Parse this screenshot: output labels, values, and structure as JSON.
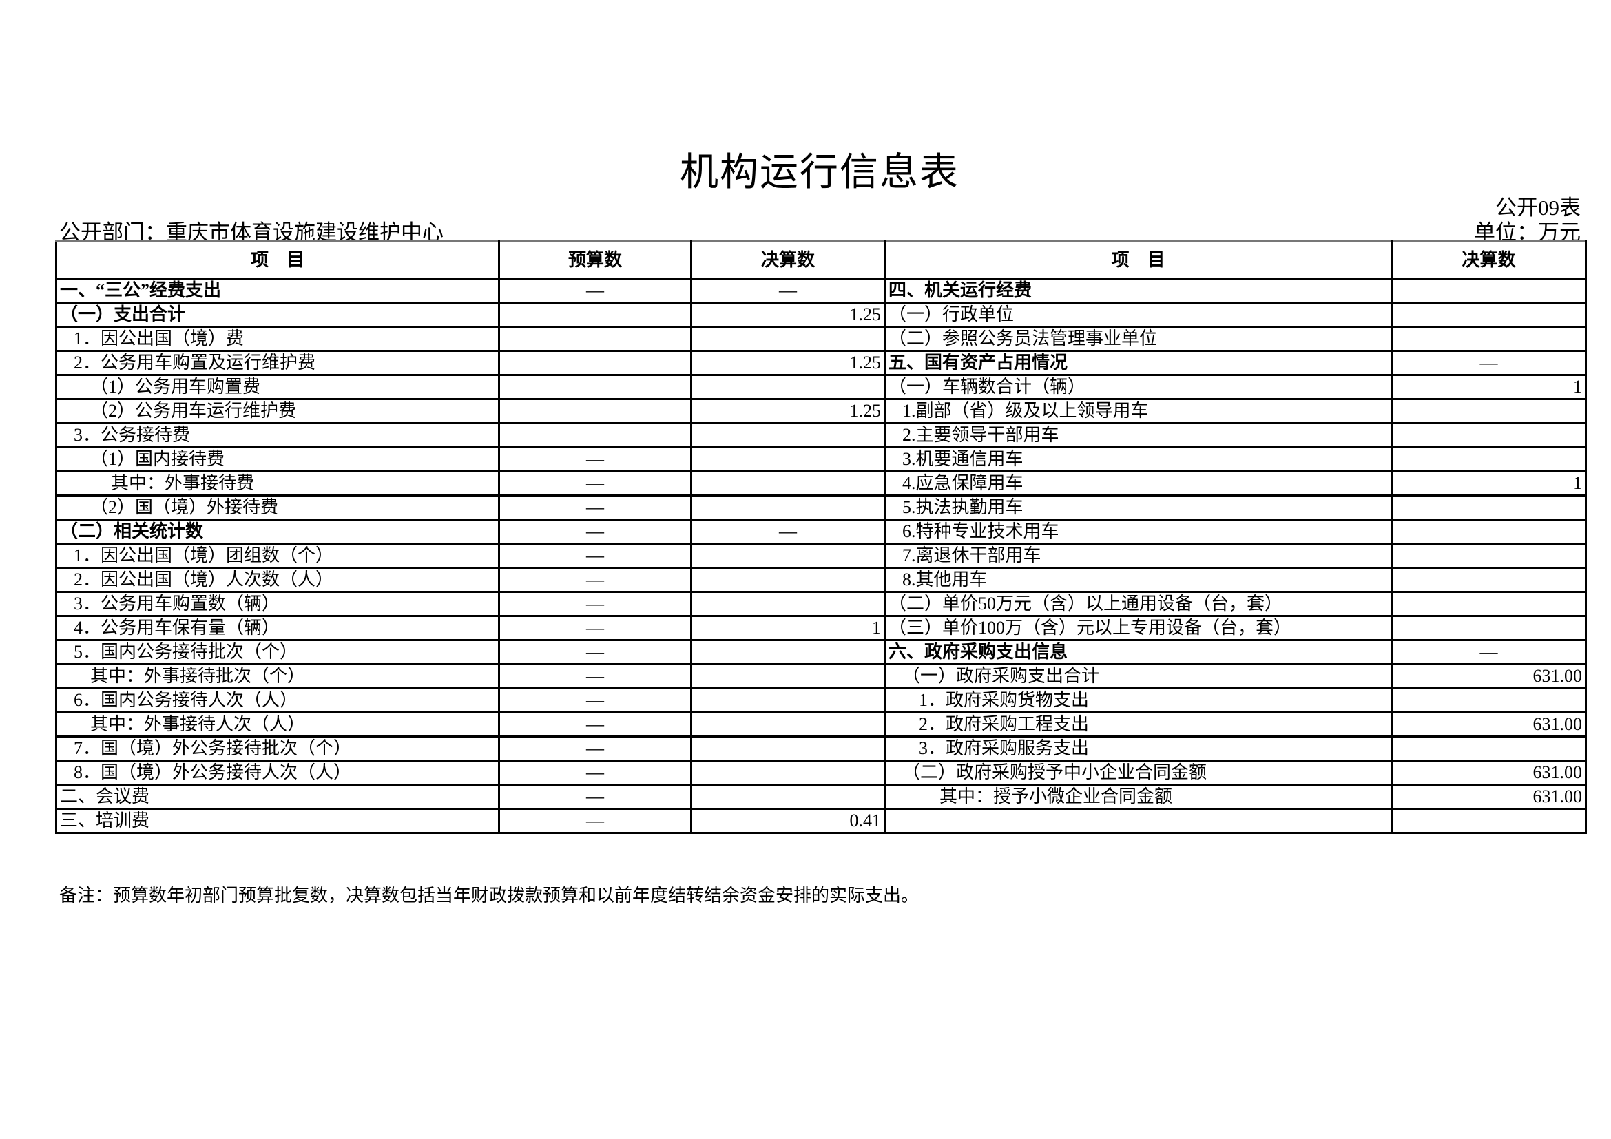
{
  "title": "机构运行信息表",
  "department": "公开部门：重庆市体育设施建设维护中心",
  "form_number": "公开09表",
  "unit": "单位：万元",
  "headers": {
    "item_left": "项　目",
    "budget": "预算数",
    "final_left": "决算数",
    "item_right": "项　目",
    "final_right": "决算数"
  },
  "left_rows": [
    {
      "label": "一、“三公”经费支出",
      "budget": "—",
      "final": "—",
      "bold": true,
      "indent": 0
    },
    {
      "label": "（一）支出合计",
      "budget": "",
      "final": "1.25",
      "bold": true,
      "indent": 0
    },
    {
      "label": "1．因公出国（境）费",
      "budget": "",
      "final": "",
      "indent": 1
    },
    {
      "label": "2．公务用车购置及运行维护费",
      "budget": "",
      "final": "1.25",
      "indent": 1
    },
    {
      "label": "（1）公务用车购置费",
      "budget": "",
      "final": "",
      "indent": 2
    },
    {
      "label": "（2）公务用车运行维护费",
      "budget": "",
      "final": "1.25",
      "indent": 2
    },
    {
      "label": "3．公务接待费",
      "budget": "",
      "final": "",
      "indent": 1
    },
    {
      "label": "（1）国内接待费",
      "budget": "—",
      "final": "",
      "indent": 2
    },
    {
      "label": "其中：外事接待费",
      "budget": "—",
      "final": "",
      "indent": 3
    },
    {
      "label": "（2）国（境）外接待费",
      "budget": "—",
      "final": "",
      "indent": 2
    },
    {
      "label": "（二）相关统计数",
      "budget": "—",
      "final": "—",
      "bold": true,
      "indent": 0
    },
    {
      "label": "1．因公出国（境）团组数（个）",
      "budget": "—",
      "final": "",
      "indent": 1
    },
    {
      "label": "2．因公出国（境）人次数（人）",
      "budget": "—",
      "final": "",
      "indent": 1
    },
    {
      "label": "3．公务用车购置数（辆）",
      "budget": "—",
      "final": "",
      "indent": 1
    },
    {
      "label": "4．公务用车保有量（辆）",
      "budget": "—",
      "final": "1",
      "indent": 1
    },
    {
      "label": "5．国内公务接待批次（个）",
      "budget": "—",
      "final": "",
      "indent": 1
    },
    {
      "label": "其中：外事接待批次（个）",
      "budget": "—",
      "final": "",
      "indent": 2
    },
    {
      "label": "6．国内公务接待人次（人）",
      "budget": "—",
      "final": "",
      "indent": 1
    },
    {
      "label": "其中：外事接待人次（人）",
      "budget": "—",
      "final": "",
      "indent": 2
    },
    {
      "label": "7．国（境）外公务接待批次（个）",
      "budget": "—",
      "final": "",
      "indent": 1
    },
    {
      "label": "8．国（境）外公务接待人次（人）",
      "budget": "—",
      "final": "",
      "indent": 1
    },
    {
      "label": "二、会议费",
      "budget": "—",
      "final": "",
      "indent": 0
    },
    {
      "label": "三、培训费",
      "budget": "—",
      "final": "0.41",
      "indent": 0
    }
  ],
  "right_rows": [
    {
      "label": "四、机关运行经费",
      "final": "",
      "bold": true,
      "indent": 0
    },
    {
      "label": "（一）行政单位",
      "final": "",
      "indent": 0
    },
    {
      "label": "（二）参照公务员法管理事业单位",
      "final": "",
      "indent": 0
    },
    {
      "label": "五、国有资产占用情况",
      "final": "—",
      "bold": true,
      "indent": 0
    },
    {
      "label": "（一）车辆数合计（辆）",
      "final": "1",
      "indent": 0
    },
    {
      "label": "1.副部（省）级及以上领导用车",
      "final": "",
      "indent": 1
    },
    {
      "label": "2.主要领导干部用车",
      "final": "",
      "indent": 1
    },
    {
      "label": "3.机要通信用车",
      "final": "",
      "indent": 1
    },
    {
      "label": "4.应急保障用车",
      "final": "1",
      "indent": 1
    },
    {
      "label": "5.执法执勤用车",
      "final": "",
      "indent": 1
    },
    {
      "label": "6.特种专业技术用车",
      "final": "",
      "indent": 1
    },
    {
      "label": "7.离退休干部用车",
      "final": "",
      "indent": 1
    },
    {
      "label": "8.其他用车",
      "final": "",
      "indent": 1
    },
    {
      "label": "（二）单价50万元（含）以上通用设备（台，套）",
      "final": "",
      "indent": 0
    },
    {
      "label": "（三）单价100万（含）元以上专用设备（台，套）",
      "final": "",
      "indent": 0
    },
    {
      "label": "六、政府采购支出信息",
      "final": "—",
      "bold": true,
      "indent": 0
    },
    {
      "label": "（一）政府采购支出合计",
      "final": "631.00",
      "indent": 1
    },
    {
      "label": "1．政府采购货物支出",
      "final": "",
      "indent": 2
    },
    {
      "label": "2．政府采购工程支出",
      "final": "631.00",
      "indent": 2
    },
    {
      "label": "3．政府采购服务支出",
      "final": "",
      "indent": 2
    },
    {
      "label": "（二）政府采购授予中小企业合同金额",
      "final": "631.00",
      "indent": 1
    },
    {
      "label": "其中：授予小微企业合同金额",
      "final": "631.00",
      "indent": 3
    },
    {
      "label": "",
      "final": "",
      "indent": 0
    }
  ],
  "note": "备注：预算数年初部门预算批复数，决算数包括当年财政拨款预算和以前年度结转结余资金安排的实际支出。"
}
